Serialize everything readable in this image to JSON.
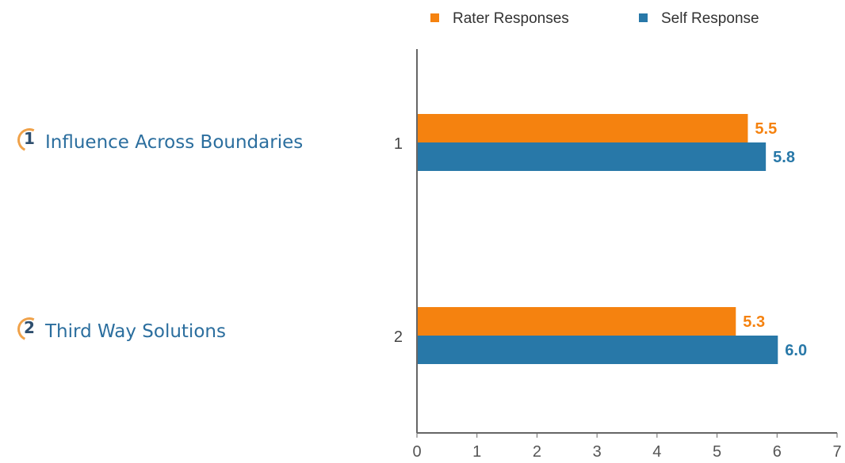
{
  "competencies": [
    {
      "number": "1",
      "name": "Influence Across Boundaries"
    },
    {
      "number": "2",
      "name": "Third Way Solutions"
    }
  ],
  "colors": {
    "rater": "#f5820f",
    "self": "#2878a8",
    "axis": "#666666",
    "label_text": "#2b6e9e",
    "ring": "#f0a24a"
  },
  "chart_data": {
    "type": "bar",
    "orientation": "horizontal",
    "categories": [
      "1",
      "2"
    ],
    "series": [
      {
        "name": "Rater Responses",
        "color": "#f5820f",
        "values": [
          5.5,
          5.3
        ],
        "labels": [
          "5.5",
          "5.3"
        ]
      },
      {
        "name": "Self Response",
        "color": "#2878a8",
        "values": [
          5.8,
          6.0
        ],
        "labels": [
          "5.8",
          "6.0"
        ]
      }
    ],
    "xlim": [
      0,
      7
    ],
    "xticks": [
      "0",
      "1",
      "2",
      "3",
      "4",
      "5",
      "6",
      "7"
    ],
    "legend_position": "top",
    "grid": false
  }
}
